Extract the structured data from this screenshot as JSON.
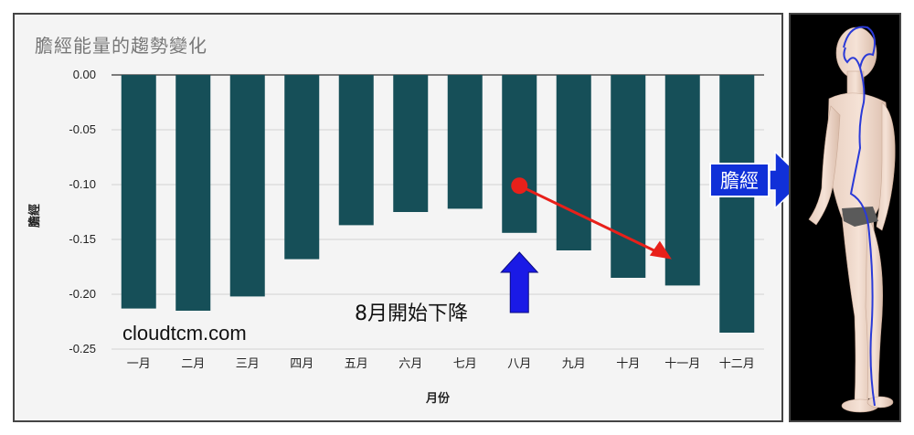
{
  "chart_data": {
    "type": "bar",
    "title": "膽經能量的趨勢變化",
    "xlabel": "月份",
    "ylabel": "膽經",
    "categories": [
      "一月",
      "二月",
      "三月",
      "四月",
      "五月",
      "六月",
      "七月",
      "八月",
      "九月",
      "十月",
      "十一月",
      "十二月"
    ],
    "values": [
      -0.213,
      -0.215,
      -0.202,
      -0.168,
      -0.137,
      -0.125,
      -0.122,
      -0.144,
      -0.16,
      -0.185,
      -0.192,
      -0.235
    ],
    "ylim": [
      -0.25,
      0
    ],
    "yticks": [
      "0.00",
      "-0.05",
      "-0.10",
      "-0.15",
      "-0.20",
      "-0.25"
    ],
    "grid": true,
    "bar_color": "#164f58",
    "annotations": {
      "watermark": "cloudtcm.com",
      "decline_note": "8月開始下降",
      "arrow_up_color": "#1a1ae6",
      "trend_arrow_color": "#e8201a"
    }
  },
  "body_figure": {
    "label": "膽經",
    "label_color": "#1030d8"
  }
}
